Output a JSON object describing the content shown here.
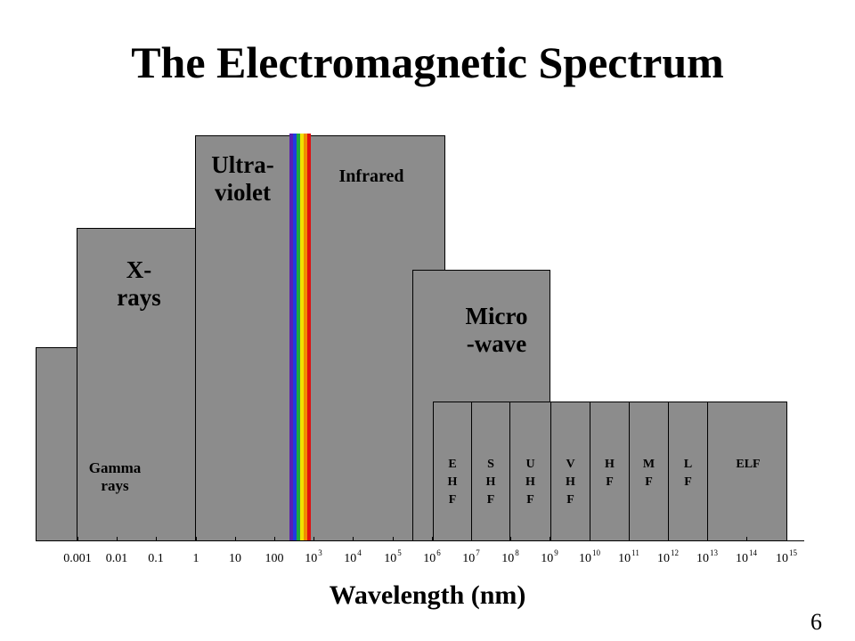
{
  "slide": {
    "title": "The Electromagnetic Spectrum",
    "x_axis_label": "Wavelength (nm)",
    "page_number": "6"
  },
  "regions": [
    {
      "name": "gamma",
      "label": "Gamma\nrays"
    },
    {
      "name": "xray",
      "label": "X-\nrays"
    },
    {
      "name": "ultraviolet",
      "label": "Ultra-\nviolet"
    },
    {
      "name": "infrared",
      "label": "Infrared"
    },
    {
      "name": "microwave",
      "label": "Micro\n-wave"
    }
  ],
  "radio_bands": [
    {
      "name": "ehf",
      "label": "E\nH\nF"
    },
    {
      "name": "shf",
      "label": "S\nH\nF"
    },
    {
      "name": "uhf",
      "label": "U\nH\nF"
    },
    {
      "name": "vhf",
      "label": "V\nH\nF"
    },
    {
      "name": "hf",
      "label": "H\nF"
    },
    {
      "name": "mf",
      "label": "M\nF"
    },
    {
      "name": "lf",
      "label": "L\nF"
    },
    {
      "name": "elf",
      "label": "ELF"
    }
  ],
  "ticks": [
    {
      "base": "0.001",
      "exp": ""
    },
    {
      "base": "0.01",
      "exp": ""
    },
    {
      "base": "0.1",
      "exp": ""
    },
    {
      "base": "1",
      "exp": ""
    },
    {
      "base": "10",
      "exp": ""
    },
    {
      "base": "100",
      "exp": ""
    },
    {
      "base": "10",
      "exp": "3"
    },
    {
      "base": "10",
      "exp": "4"
    },
    {
      "base": "10",
      "exp": "5"
    },
    {
      "base": "10",
      "exp": "6"
    },
    {
      "base": "10",
      "exp": "7"
    },
    {
      "base": "10",
      "exp": "8"
    },
    {
      "base": "10",
      "exp": "9"
    },
    {
      "base": "10",
      "exp": "10"
    },
    {
      "base": "10",
      "exp": "11"
    },
    {
      "base": "10",
      "exp": "12"
    },
    {
      "base": "10",
      "exp": "13"
    },
    {
      "base": "10",
      "exp": "14"
    },
    {
      "base": "10",
      "exp": "15"
    }
  ],
  "visible_spectrum_colors": [
    "#5a1fb0",
    "#1f3ce0",
    "#1faa3c",
    "#f0e000",
    "#f08c00",
    "#e01010"
  ],
  "colors": {
    "block_fill": "#8c8c8c"
  }
}
